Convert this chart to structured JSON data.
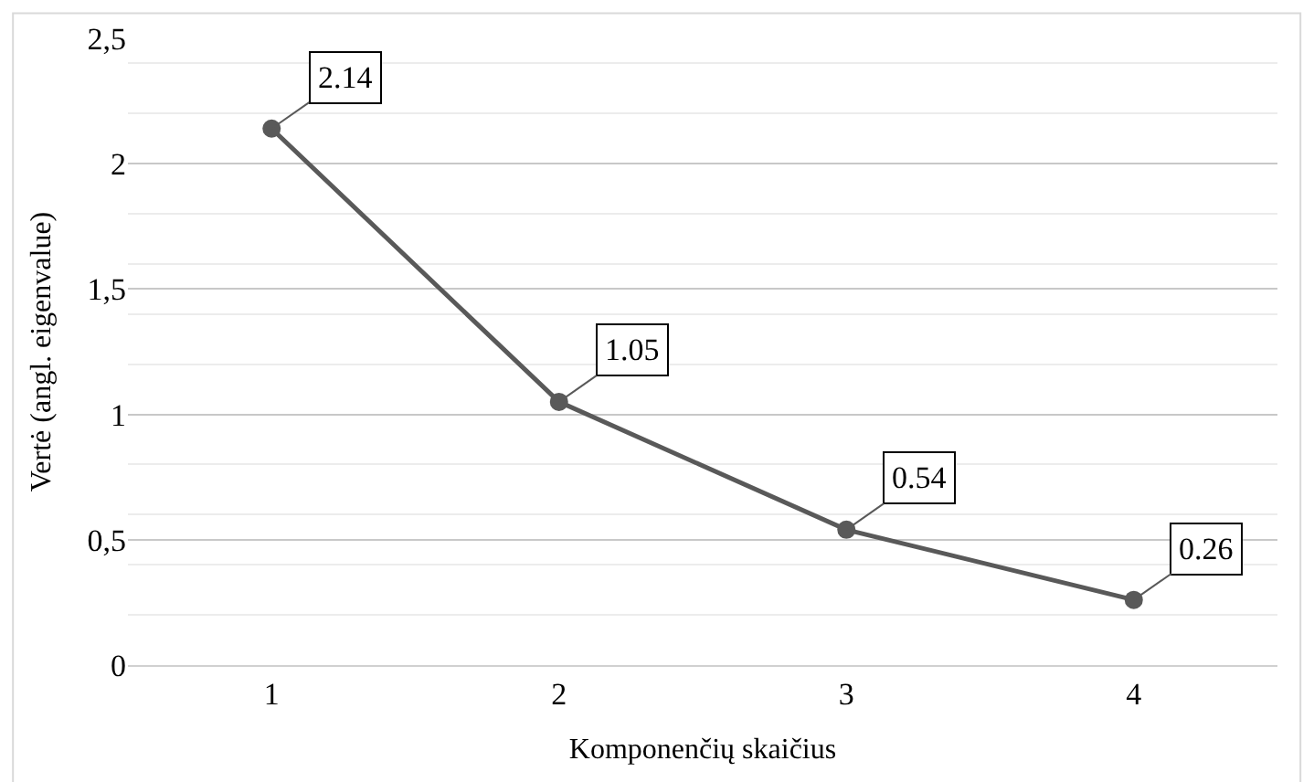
{
  "chart_data": {
    "type": "line",
    "xlabel": "Komponenčių skaičius",
    "ylabel": "Vertė (angl. eigenvalue)",
    "categories": [
      "1",
      "2",
      "3",
      "4"
    ],
    "series": [
      {
        "color": "#595959",
        "values": [
          2.14,
          1.05,
          0.54,
          0.26
        ]
      }
    ],
    "ylim": [
      0,
      2.5
    ],
    "yticks": [
      {
        "value": 0,
        "label": "0"
      },
      {
        "value": 0.5,
        "label": "0,5"
      },
      {
        "value": 1,
        "label": "1"
      },
      {
        "value": 1.5,
        "label": "1,5"
      },
      {
        "value": 2,
        "label": "2"
      },
      {
        "value": 2.5,
        "label": "2,5"
      }
    ],
    "grid": "y",
    "marker": "circle",
    "line_style": "solid",
    "data_labels": true
  }
}
